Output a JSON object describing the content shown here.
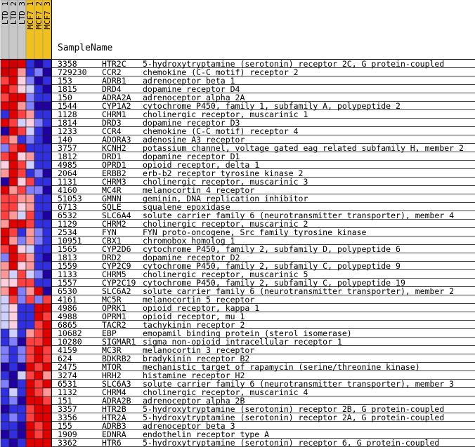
{
  "header": {
    "title": "SampleName",
    "columns": [
      {
        "label": "LTD_1",
        "color": "#c8c8c8"
      },
      {
        "label": "LTD_2",
        "color": "#c8c8c8"
      },
      {
        "label": "LTD_3",
        "color": "#c8c8c8"
      },
      {
        "label": "MCF7_1",
        "color": "#f0c020"
      },
      {
        "label": "MCF7_2",
        "color": "#f0c020"
      },
      {
        "label": "MCF7_3",
        "color": "#f0c020"
      }
    ]
  },
  "rows": [
    {
      "id": "3358",
      "symbol": "HTR2C",
      "description": "5-hydroxytryptamine (serotonin) receptor 2C, G protein-coupled",
      "colors": [
        "#e00000",
        "#cc0000",
        "#e00000",
        "#3030e0",
        "#2000a0",
        "#3030e0"
      ]
    },
    {
      "id": "729230",
      "symbol": "CCR2",
      "description": "chemokine (C-C motif) receptor 2",
      "colors": [
        "#cc0000",
        "#e00000",
        "#ff9999",
        "#3030e0",
        "#8080ff",
        "#2000a0"
      ]
    },
    {
      "id": "153",
      "symbol": "ADRB1",
      "description": "adrenoceptor beta 1",
      "colors": [
        "#ff4040",
        "#e00000",
        "#ffd0e0",
        "#8080ff",
        "#2000a0",
        "#3030e0"
      ]
    },
    {
      "id": "1815",
      "symbol": "DRD4",
      "description": "dopamine receptor D4",
      "colors": [
        "#e00000",
        "#ff4040",
        "#ffd0e0",
        "#d0d0ff",
        "#3030e0",
        "#2000a0"
      ]
    },
    {
      "id": "150",
      "symbol": "ADRA2A",
      "description": "adrenoceptor alpha 2A",
      "colors": [
        "#ff4040",
        "#e00000",
        "#e00000",
        "#8080ff",
        "#3030e0",
        "#3030e0"
      ]
    },
    {
      "id": "1544",
      "symbol": "CYP1A2",
      "description": "cytochrome P450, family 1, subfamily A, polypeptide 2",
      "colors": [
        "#e00000",
        "#e00000",
        "#ff9999",
        "#8080ff",
        "#2000a0",
        "#2000a0"
      ]
    },
    {
      "id": "1128",
      "symbol": "CHRM1",
      "description": "cholinergic receptor, muscarinic 1",
      "colors": [
        "#3030e0",
        "#e00000",
        "#ff4040",
        "#ff9999",
        "#3030e0",
        "#3030e0"
      ]
    },
    {
      "id": "1814",
      "symbol": "DRD3",
      "description": "dopamine receptor D3",
      "colors": [
        "#e00000",
        "#ff4040",
        "#d0d0ff",
        "#ffd0e0",
        "#8080ff",
        "#3030e0"
      ]
    },
    {
      "id": "1233",
      "symbol": "CCR4",
      "description": "chemokine (C-C motif) receptor 4",
      "colors": [
        "#2000a0",
        "#e00000",
        "#ff4040",
        "#d0d0ff",
        "#3030e0",
        "#2000a0"
      ]
    },
    {
      "id": "140",
      "symbol": "ADORA3",
      "description": "adenosine A3 receptor",
      "colors": [
        "#ff4040",
        "#ff9999",
        "#3030e0",
        "#8080ff",
        "#3030e0",
        "#2000a0"
      ]
    },
    {
      "id": "3757",
      "symbol": "KCNH2",
      "description": "potassium channel, voltage gated eag related subfamily H, member 2",
      "colors": [
        "#8080ff",
        "#ff4040",
        "#e00000",
        "#3030e0",
        "#3030e0",
        "#3030e0"
      ]
    },
    {
      "id": "1812",
      "symbol": "DRD1",
      "description": "dopamine receptor D1",
      "colors": [
        "#ff4040",
        "#e00000",
        "#ffd0e0",
        "#ff9999",
        "#3030e0",
        "#3030e0"
      ]
    },
    {
      "id": "4985",
      "symbol": "OPRD1",
      "description": "opioid receptor, delta 1",
      "colors": [
        "#ffd0e0",
        "#e00000",
        "#ff4040",
        "#d0d0ff",
        "#3030e0",
        "#3030e0"
      ]
    },
    {
      "id": "2064",
      "symbol": "ERBB2",
      "description": "erb-b2 receptor tyrosine kinase 2",
      "colors": [
        "#ff9999",
        "#e00000",
        "#ff4040",
        "#3030e0",
        "#8080ff",
        "#2000a0"
      ]
    },
    {
      "id": "1131",
      "symbol": "CHRM3",
      "description": "cholinergic receptor, muscarinic 3",
      "colors": [
        "#2000a0",
        "#e00000",
        "#ffd0e0",
        "#ff4040",
        "#3030e0",
        "#3030e0"
      ]
    },
    {
      "id": "4160",
      "symbol": "MC4R",
      "description": "melanocortin 4 receptor",
      "colors": [
        "#e00000",
        "#ff9999",
        "#ff4040",
        "#8080ff",
        "#8080ff",
        "#2000a0"
      ]
    },
    {
      "id": "51053",
      "symbol": "GMNN",
      "description": "geminin, DNA replication inhibitor",
      "colors": [
        "#ff4040",
        "#ff4040",
        "#ff9999",
        "#ff9999",
        "#3030e0",
        "#3030e0"
      ]
    },
    {
      "id": "6713",
      "symbol": "SQLE",
      "description": "squalene epoxidase",
      "colors": [
        "#ff4040",
        "#ff4040",
        "#ffd0e0",
        "#ff9999",
        "#3030e0",
        "#3030e0"
      ]
    },
    {
      "id": "6532",
      "symbol": "SLC6A4",
      "description": "solute carrier family 6 (neurotransmitter transporter), member 4",
      "colors": [
        "#ff4040",
        "#ff9999",
        "#d0d0ff",
        "#ff4040",
        "#3030e0",
        "#2000a0"
      ]
    },
    {
      "id": "1129",
      "symbol": "CHRM2",
      "description": "cholinergic receptor, muscarinic 2",
      "colors": [
        "#ff9999",
        "#e00000",
        "#e00000",
        "#ff4040",
        "#3030e0",
        "#3030e0"
      ]
    },
    {
      "id": "2534",
      "symbol": "FYN",
      "description": "FYN proto-oncogene, Src family tyrosine kinase",
      "colors": [
        "#e00000",
        "#ff4040",
        "#3030e0",
        "#ff9999",
        "#8080ff",
        "#3030e0"
      ]
    },
    {
      "id": "10951",
      "symbol": "CBX1",
      "description": "chromobox homolog 1",
      "colors": [
        "#e00000",
        "#ff9999",
        "#8080ff",
        "#ff9999",
        "#8080ff",
        "#3030e0"
      ]
    },
    {
      "id": "1565",
      "symbol": "CYP2D6",
      "description": "cytochrome P450, family 2, subfamily D, polypeptide 6",
      "colors": [
        "#ff4040",
        "#e00000",
        "#ffd0e0",
        "#d0d0ff",
        "#3030e0",
        "#3030e0"
      ]
    },
    {
      "id": "1813",
      "symbol": "DRD2",
      "description": "dopamine receptor D2",
      "colors": [
        "#8080ff",
        "#e00000",
        "#ff4040",
        "#ff9999",
        "#3030e0",
        "#2000a0"
      ]
    },
    {
      "id": "1559",
      "symbol": "CYP2C9",
      "description": "cytochrome P450, family 2, subfamily C, polypeptide 9",
      "colors": [
        "#ff9999",
        "#e00000",
        "#ffd0e0",
        "#ff9999",
        "#3030e0",
        "#3030e0"
      ]
    },
    {
      "id": "1133",
      "symbol": "CHRM5",
      "description": "cholinergic receptor, muscarinic 5",
      "colors": [
        "#ff9999",
        "#d0d0ff",
        "#ff4040",
        "#d0d0ff",
        "#8080ff",
        "#2000a0"
      ]
    },
    {
      "id": "1557",
      "symbol": "CYP2C19",
      "description": "cytochrome P450, family 2, subfamily C, polypeptide 19",
      "colors": [
        "#ffd0e0",
        "#ffd0e0",
        "#ff4040",
        "#ff4040",
        "#3030e0",
        "#3030e0"
      ]
    },
    {
      "id": "6530",
      "symbol": "SLC6A2",
      "description": "solute carrier family 6 (neurotransmitter transporter), member 2",
      "colors": [
        "#ff9999",
        "#e00000",
        "#8080ff",
        "#ff9999",
        "#e00000",
        "#2000a0"
      ]
    },
    {
      "id": "4161",
      "symbol": "MC5R",
      "description": "melanocortin 5 receptor",
      "colors": [
        "#d0d0ff",
        "#ff4040",
        "#8080ff",
        "#ff4040",
        "#8080ff",
        "#ff4040"
      ]
    },
    {
      "id": "4986",
      "symbol": "OPRK1",
      "description": "opioid receptor, kappa 1",
      "colors": [
        "#d0d0ff",
        "#ffd0e0",
        "#3030e0",
        "#3030e0",
        "#e00000",
        "#e00000"
      ]
    },
    {
      "id": "4988",
      "symbol": "OPRM1",
      "description": "opioid receptor, mu 1",
      "colors": [
        "#d0d0ff",
        "#ffd0e0",
        "#3030e0",
        "#3030e0",
        "#e00000",
        "#ff4040"
      ]
    },
    {
      "id": "6865",
      "symbol": "TACR2",
      "description": "tachykinin receptor 2",
      "colors": [
        "#d0d0ff",
        "#ffd0e0",
        "#3030e0",
        "#3030e0",
        "#ff4040",
        "#e00000"
      ]
    },
    {
      "id": "10682",
      "symbol": "EBP",
      "description": "emopamil binding protein (sterol isomerase)",
      "colors": [
        "#3030e0",
        "#d0d0ff",
        "#3030e0",
        "#ff9999",
        "#ff4040",
        "#e00000"
      ]
    },
    {
      "id": "10280",
      "symbol": "SIGMAR1",
      "description": "sigma non-opioid intracellular receptor 1",
      "colors": [
        "#3030e0",
        "#8080ff",
        "#2000a0",
        "#ff4040",
        "#ff4040",
        "#e00000"
      ]
    },
    {
      "id": "4159",
      "symbol": "MC3R",
      "description": "melanocortin 3 receptor",
      "colors": [
        "#8080ff",
        "#3030e0",
        "#8080ff",
        "#ff4040",
        "#e00000",
        "#ff4040"
      ]
    },
    {
      "id": "624",
      "symbol": "BDKRB2",
      "description": "bradykinin receptor B2",
      "colors": [
        "#8080ff",
        "#3030e0",
        "#8080ff",
        "#ff4040",
        "#e00000",
        "#ff4040"
      ]
    },
    {
      "id": "2475",
      "symbol": "MTOR",
      "description": "mechanistic target of rapamycin (serine/threonine kinase)",
      "colors": [
        "#2000a0",
        "#3030e0",
        "#2000a0",
        "#e00000",
        "#ff4040",
        "#e00000"
      ]
    },
    {
      "id": "3274",
      "symbol": "HRH2",
      "description": "histamine receptor H2",
      "colors": [
        "#3030e0",
        "#2000a0",
        "#d0d0ff",
        "#ff4040",
        "#e00000",
        "#ff9999"
      ]
    },
    {
      "id": "6531",
      "symbol": "SLC6A3",
      "description": "solute carrier family 6 (neurotransmitter transporter), member 3",
      "colors": [
        "#8080ff",
        "#2000a0",
        "#3030e0",
        "#e00000",
        "#ff4040",
        "#e00000"
      ]
    },
    {
      "id": "1132",
      "symbol": "CHRM4",
      "description": "cholinergic receptor, muscarinic 4",
      "colors": [
        "#3030e0",
        "#d0d0ff",
        "#3030e0",
        "#e00000",
        "#ff4040",
        "#ff9999"
      ]
    },
    {
      "id": "151",
      "symbol": "ADRA2B",
      "description": "adrenoceptor alpha 2B",
      "colors": [
        "#3030e0",
        "#8080ff",
        "#2000a0",
        "#e00000",
        "#e00000",
        "#ff4040"
      ]
    },
    {
      "id": "3357",
      "symbol": "HTR2B",
      "description": "5-hydroxytryptamine (serotonin) receptor 2B, G protein-coupled",
      "colors": [
        "#2000a0",
        "#3030e0",
        "#3030e0",
        "#ff4040",
        "#e00000",
        "#e00000"
      ]
    },
    {
      "id": "3356",
      "symbol": "HTR2A",
      "description": "5-hydroxytryptamine (serotonin) receptor 2A, G protein-coupled",
      "colors": [
        "#3030e0",
        "#8080ff",
        "#3030e0",
        "#ff4040",
        "#e00000",
        "#e00000"
      ]
    },
    {
      "id": "155",
      "symbol": "ADRB3",
      "description": "adrenoceptor beta 3",
      "colors": [
        "#3030e0",
        "#3030e0",
        "#2000a0",
        "#e00000",
        "#ff4040",
        "#e00000"
      ]
    },
    {
      "id": "1909",
      "symbol": "EDNRA",
      "description": "endothelin receptor type A",
      "colors": [
        "#2000a0",
        "#3030e0",
        "#2000a0",
        "#e00000",
        "#ff4040",
        "#e00000"
      ]
    },
    {
      "id": "3362",
      "symbol": "HTR6",
      "description": "5-hydroxytryptamine (serotonin) receptor 6, G protein-coupled",
      "colors": [
        "#3030e0",
        "#2000a0",
        "#3030e0",
        "#e00000",
        "#e00000",
        "#e00000"
      ]
    }
  ]
}
